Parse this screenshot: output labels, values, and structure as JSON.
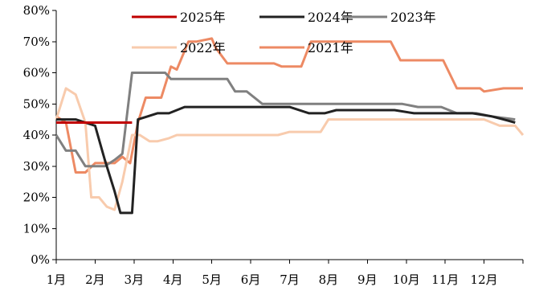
{
  "chart_data": {
    "type": "line",
    "title": "",
    "xlabel": "",
    "ylabel": "",
    "x_tick_labels": [
      "1月",
      "2月",
      "3月",
      "4月",
      "5月",
      "6月",
      "7月",
      "8月",
      "9月",
      "10月",
      "11月",
      "12月"
    ],
    "y_tick_labels": [
      "0%",
      "10%",
      "20%",
      "30%",
      "40%",
      "50%",
      "60%",
      "70%",
      "80%"
    ],
    "ylim": [
      0,
      80
    ],
    "xlim": [
      1,
      13
    ],
    "grid": false,
    "legend_position": "top",
    "series": [
      {
        "name": "2025年",
        "color": "#C00000",
        "x": [
          1.0,
          1.5,
          2.0,
          2.5,
          2.95
        ],
        "y": [
          44,
          44,
          44,
          44,
          44
        ]
      },
      {
        "name": "2024年",
        "color": "#222222",
        "x": [
          1.0,
          1.25,
          1.5,
          1.75,
          2.0,
          2.25,
          2.5,
          2.65,
          2.8,
          2.95,
          3.1,
          3.35,
          3.6,
          3.9,
          4.3,
          5.0,
          6.0,
          6.5,
          7.0,
          7.5,
          7.9,
          8.2,
          9.0,
          9.7,
          10.2,
          11.0,
          11.7,
          12.2,
          12.5,
          12.8
        ],
        "y": [
          45,
          45,
          45,
          44,
          43,
          32,
          22,
          15,
          15,
          15,
          45,
          46,
          47,
          47,
          49,
          49,
          49,
          49,
          49,
          47,
          47,
          48,
          48,
          48,
          47,
          47,
          47,
          46,
          45,
          44
        ]
      },
      {
        "name": "2023年",
        "color": "#808080",
        "x": [
          1.0,
          1.25,
          1.5,
          1.75,
          2.0,
          2.25,
          2.5,
          2.7,
          2.95,
          3.2,
          3.5,
          3.8,
          3.95,
          4.3,
          5.0,
          5.4,
          5.6,
          5.9,
          6.3,
          7.0,
          8.0,
          9.0,
          9.9,
          10.3,
          10.9,
          11.3,
          11.8,
          12.2,
          12.8
        ],
        "y": [
          40,
          35,
          35,
          30,
          30,
          30,
          32,
          34,
          60,
          60,
          60,
          60,
          58,
          58,
          58,
          58,
          54,
          54,
          50,
          50,
          50,
          50,
          50,
          49,
          49,
          47,
          47,
          46,
          45
        ]
      },
      {
        "name": "2022年",
        "color": "#F8CBAD",
        "x": [
          1.0,
          1.25,
          1.5,
          1.75,
          1.9,
          2.1,
          2.3,
          2.5,
          2.7,
          2.95,
          3.15,
          3.4,
          3.6,
          3.9,
          4.1,
          4.5,
          5.0,
          5.5,
          6.0,
          6.5,
          6.7,
          7.0,
          7.5,
          7.8,
          8.0,
          9.0,
          10.0,
          11.0,
          11.3,
          12.0,
          12.4,
          12.8,
          13.0
        ],
        "y": [
          45,
          55,
          53,
          44,
          20,
          20,
          17,
          16,
          25,
          40,
          40,
          38,
          38,
          39,
          40,
          40,
          40,
          40,
          40,
          40,
          40,
          41,
          41,
          41,
          45,
          45,
          45,
          45,
          45,
          45,
          43,
          43,
          40
        ]
      },
      {
        "name": "2021年",
        "color": "#ED8A64",
        "x": [
          1.0,
          1.25,
          1.5,
          1.75,
          2.0,
          2.25,
          2.5,
          2.7,
          2.9,
          3.1,
          3.3,
          3.5,
          3.7,
          3.95,
          4.1,
          4.4,
          4.6,
          5.0,
          5.1,
          5.4,
          5.6,
          6.0,
          6.5,
          6.6,
          6.8,
          7.0,
          7.3,
          7.55,
          7.9,
          8.3,
          9.0,
          9.6,
          9.85,
          10.3,
          10.7,
          10.95,
          11.3,
          11.7,
          11.9,
          12.0,
          12.5,
          13.0
        ],
        "y": [
          46,
          44,
          28,
          28,
          31,
          31,
          31,
          33,
          31,
          44,
          52,
          52,
          52,
          62,
          61,
          70,
          70,
          71,
          68,
          63,
          63,
          63,
          63,
          63,
          62,
          62,
          62,
          70,
          70,
          70,
          70,
          70,
          64,
          64,
          64,
          64,
          55,
          55,
          55,
          54,
          55,
          55
        ]
      }
    ]
  }
}
